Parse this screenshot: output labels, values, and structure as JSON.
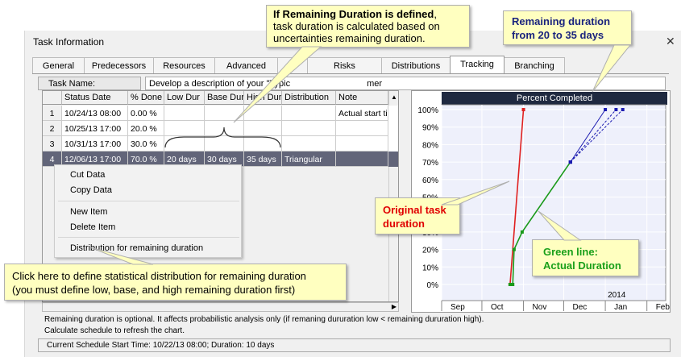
{
  "dialog": {
    "title": "Task Information"
  },
  "tabs": [
    "General",
    "Predecessors",
    "Resources",
    "Advanced",
    "D",
    "Risks",
    "Distributions",
    "Tracking",
    "Branching"
  ],
  "task_name": {
    "label": "Task Name:",
    "value": "Develop a description of your \"Typic",
    "value_tail": "mer"
  },
  "grid": {
    "columns": [
      "Status Date",
      "% Done",
      "Low Dur",
      "Base Dur",
      "High Dur",
      "Distribution",
      "Note"
    ],
    "rows": [
      {
        "num": "1",
        "status_date": "10/24/13 08:00",
        "done": "0.00 %",
        "low": "",
        "base": "",
        "high": "",
        "dist": "",
        "note": "Actual start time"
      },
      {
        "num": "2",
        "status_date": "10/25/13 17:00",
        "done": "20.0 %",
        "low": "",
        "base": "",
        "high": "",
        "dist": "",
        "note": ""
      },
      {
        "num": "3",
        "status_date": "10/31/13 17:00",
        "done": "30.0 %",
        "low": "",
        "base": "",
        "high": "",
        "dist": "",
        "note": ""
      },
      {
        "num": "4",
        "status_date": "12/06/13 17:00",
        "done": "70.0 %",
        "low": "20 days",
        "base": "30 days",
        "high": "35 days",
        "dist": "Triangular",
        "note": ""
      }
    ]
  },
  "context_menu": [
    "Cut Data",
    "Copy Data",
    "New Item",
    "Delete Item",
    "Distribution for remaining duration"
  ],
  "caption_1": "Remaining duration is optional. It affects probabilistic analysis only (if remaning dururation low <  remaining dururation high).",
  "caption_2": "Calculate schedule to refresh the chart.",
  "status_bar": "Current Schedule Start Time: 10/22/13 08:00;   Duration: 10 days",
  "chart_data": {
    "type": "line",
    "title": "Percent Completed",
    "y_ticks": [
      "100%",
      "90%",
      "80%",
      "70%",
      "60%",
      "50%",
      "40%",
      "30%",
      "20%",
      "10%",
      "0%"
    ],
    "x_ticks": [
      "Sep",
      "Oct",
      "Nov",
      "Dec",
      "Jan",
      "Feb"
    ],
    "year_label": "2014",
    "ylim": [
      0,
      100
    ],
    "series": [
      {
        "color": "#e02020",
        "x": [
          "2013-10-22",
          "2013-11-01"
        ],
        "y": [
          0,
          100
        ]
      },
      {
        "color": "#1a9a1a",
        "x": [
          "2013-10-22",
          "2013-10-24",
          "2013-10-25",
          "2013-10-31",
          "2013-12-06"
        ],
        "y": [
          0,
          0,
          20,
          30,
          70
        ]
      },
      {
        "color": "#1a1ab0",
        "x": [
          "2013-12-06",
          "2014-01-01"
        ],
        "y": [
          70,
          100
        ]
      },
      {
        "color": "#1a1ab0",
        "x": [
          "2013-12-06",
          "2014-01-09"
        ],
        "y": [
          70,
          100
        ]
      },
      {
        "color": "#1a1ab0",
        "x": [
          "2013-12-06",
          "2014-01-14"
        ],
        "y": [
          70,
          100
        ]
      }
    ]
  },
  "callouts": {
    "remaining_bold": "If Remaining Duration is defined",
    "remaining_rest_1": ",",
    "remaining_rest_2": "task duration is calculated  based on",
    "remaining_rest_3": "uncertainties remaining duration.",
    "range_1": "Remaining duration",
    "range_2": "from 20 to 35 days",
    "original_1": "Original task",
    "original_2": "duration",
    "green_1": "Green line:",
    "green_2": "Actual Duration",
    "click_1": "Click here to define statistical distribution for remaining duration",
    "click_2": "(you must define low, base, and high remaining duration first)"
  },
  "colors": {
    "selected_row": "#626579",
    "chart_title_bg": "#1f2940",
    "callout_bg": "#ffffc0",
    "red_text": "#e00000",
    "green_text": "#1aa01a",
    "navy_text": "#1a237e"
  }
}
